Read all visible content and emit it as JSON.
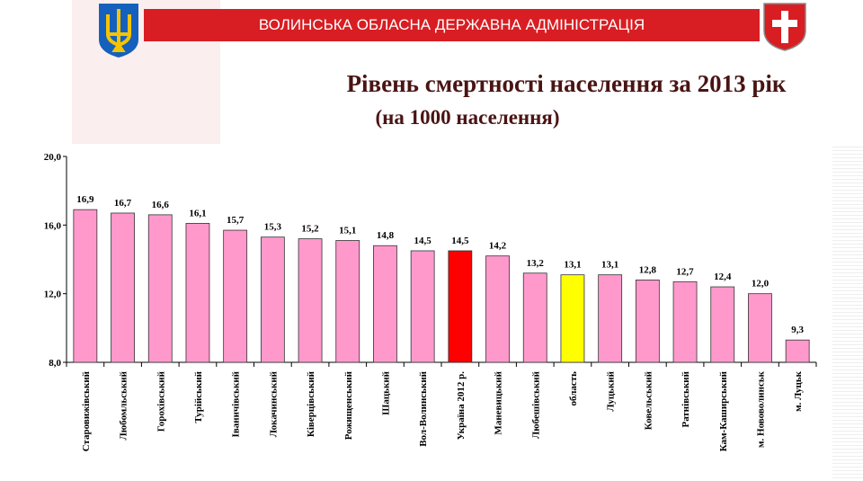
{
  "header": {
    "banner": "ВОЛИНСЬКА ОБЛАСНА ДЕРЖАВНА АДМІНІСТРАЦІЯ",
    "title": "Рівень смертності населення за 2013 рік",
    "subtitle": "(на 1000 населення)"
  },
  "colors": {
    "default": "#ff99cc",
    "ukraine": "#ff0000",
    "oblast": "#ffff00",
    "banner": "#d81e23"
  },
  "chart_data": {
    "type": "bar",
    "title": "Рівень смертності населення за 2013 рік",
    "subtitle": "(на 1000 населення)",
    "ylim": [
      8,
      20
    ],
    "yticks": [
      "8,0",
      "12,0",
      "16,0",
      "20,0"
    ],
    "ytick_values": [
      8,
      12,
      16,
      20
    ],
    "categories": [
      "Старовижівський",
      "Любомльський",
      "Горохівський",
      "Турійський",
      "Іваничівський",
      "Локачинський",
      "Ківерцівський",
      "Рожищенський",
      "Шацький",
      "Вол-Волинський",
      "Україна 2012 р.",
      "Маневицький",
      "Любешівський",
      "область",
      "Луцький",
      "Ковельський",
      "Ратнівський",
      "Кам-Каширський",
      "м. Нововолинськ",
      "м. Луцьк"
    ],
    "values": [
      16.9,
      16.7,
      16.6,
      16.1,
      15.7,
      15.3,
      15.2,
      15.1,
      14.8,
      14.5,
      14.5,
      14.2,
      13.2,
      13.1,
      13.1,
      12.8,
      12.7,
      12.4,
      12.0,
      9.3
    ],
    "labels": [
      "16,9",
      "16,7",
      "16,6",
      "16,1",
      "15,7",
      "15,3",
      "15,2",
      "15,1",
      "14,8",
      "14,5",
      "14,5",
      "14,2",
      "13,2",
      "13,1",
      "13,1",
      "12,8",
      "12,7",
      "12,4",
      "12,0",
      "9,3"
    ],
    "highlight": {
      "Україна 2012 р.": "ukraine",
      "область": "oblast"
    }
  }
}
